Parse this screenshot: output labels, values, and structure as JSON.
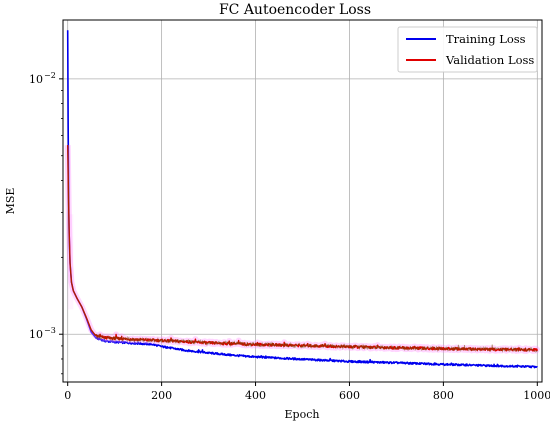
{
  "chart_data": {
    "type": "line",
    "title": "FC Autoencoder Loss",
    "xlabel": "Epoch",
    "ylabel": "MSE",
    "xlim": [
      -10,
      1010
    ],
    "ylim": [
      0.00065,
      0.017
    ],
    "yscale": "log",
    "grid": true,
    "legend_position": "top-right",
    "x_ticks": [
      0,
      200,
      400,
      600,
      800,
      1000
    ],
    "x_tick_labels": [
      "0",
      "200",
      "400",
      "600",
      "800",
      "1000"
    ],
    "y_major_ticks": [
      0.001,
      0.01
    ],
    "y_tick_labels": [
      "10",
      "10"
    ],
    "y_tick_exponents": [
      "−3",
      "−2"
    ],
    "series": [
      {
        "name": "Training Loss",
        "color": "#0000ee",
        "points": [
          [
            0,
            0.0155
          ],
          [
            1,
            0.0065
          ],
          [
            2,
            0.0035
          ],
          [
            3,
            0.0025
          ],
          [
            5,
            0.0019
          ],
          [
            8,
            0.0016
          ],
          [
            12,
            0.00148
          ],
          [
            20,
            0.00138
          ],
          [
            30,
            0.00128
          ],
          [
            40,
            0.00115
          ],
          [
            50,
            0.00102
          ],
          [
            60,
            0.000968
          ],
          [
            80,
            0.00094
          ],
          [
            100,
            0.000932
          ],
          [
            150,
            0.00092
          ],
          [
            180,
            0.000913
          ],
          [
            200,
            0.000895
          ],
          [
            250,
            0.000865
          ],
          [
            300,
            0.000845
          ],
          [
            350,
            0.000828
          ],
          [
            400,
            0.000815
          ],
          [
            500,
            0.000798
          ],
          [
            600,
            0.000782
          ],
          [
            700,
            0.000773
          ],
          [
            800,
            0.000762
          ],
          [
            900,
            0.000753
          ],
          [
            1000,
            0.000745
          ]
        ]
      },
      {
        "name": "Validation Loss",
        "color": "#e00000",
        "points": [
          [
            0,
            0.0055
          ],
          [
            1,
            0.0042
          ],
          [
            2,
            0.0032
          ],
          [
            3,
            0.0026
          ],
          [
            5,
            0.0019
          ],
          [
            8,
            0.0016
          ],
          [
            12,
            0.00148
          ],
          [
            20,
            0.00138
          ],
          [
            30,
            0.00128
          ],
          [
            40,
            0.00116
          ],
          [
            50,
            0.00104
          ],
          [
            60,
            0.000985
          ],
          [
            80,
            0.00097
          ],
          [
            100,
            0.000963
          ],
          [
            150,
            0.000953
          ],
          [
            200,
            0.000945
          ],
          [
            250,
            0.000935
          ],
          [
            300,
            0.000925
          ],
          [
            400,
            0.000912
          ],
          [
            500,
            0.000903
          ],
          [
            600,
            0.000893
          ],
          [
            700,
            0.000885
          ],
          [
            800,
            0.000878
          ],
          [
            900,
            0.000872
          ],
          [
            1000,
            0.000868
          ]
        ]
      }
    ]
  }
}
